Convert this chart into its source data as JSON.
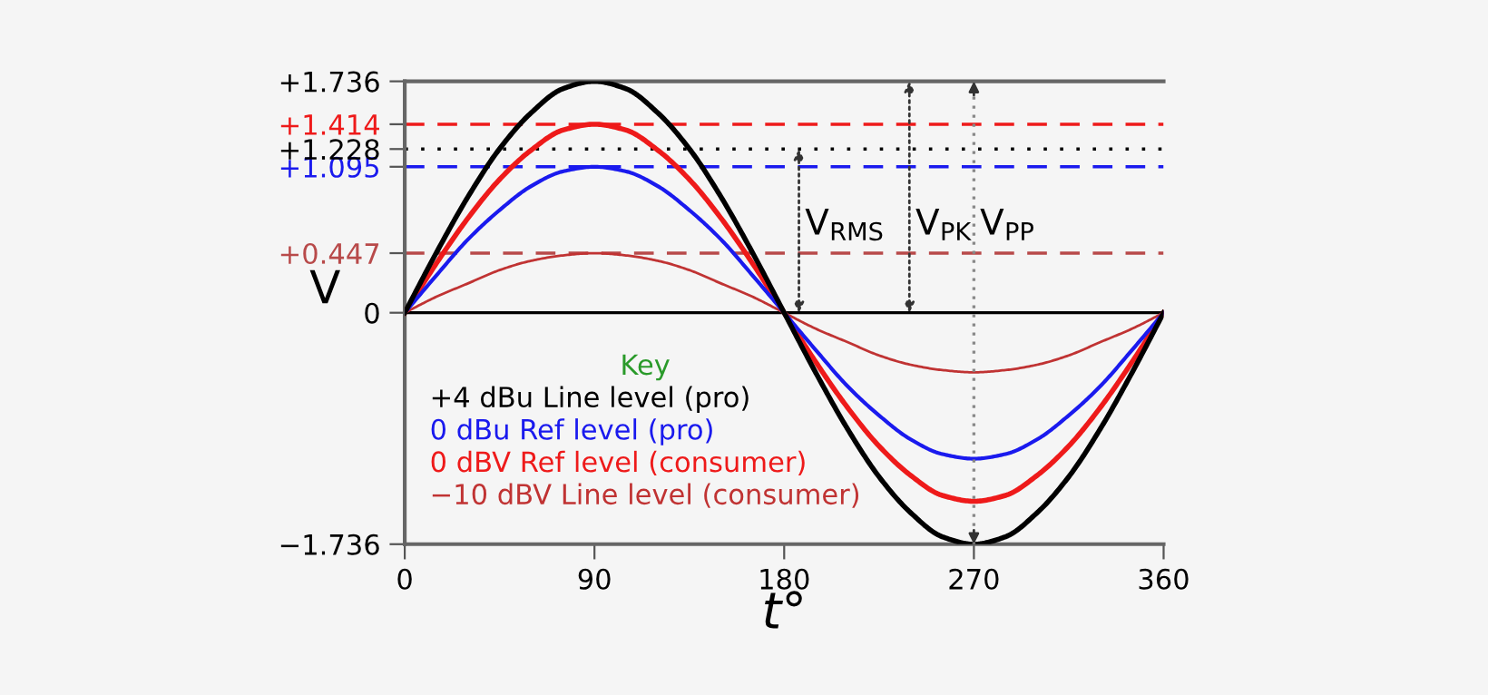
{
  "chart_data": {
    "type": "line",
    "xlabel": "t°",
    "ylabel": "V",
    "legend_title": "Key",
    "x": [
      0,
      15,
      30,
      45,
      60,
      75,
      90,
      105,
      120,
      135,
      150,
      165,
      180,
      195,
      210,
      225,
      240,
      255,
      270,
      285,
      300,
      315,
      330,
      345,
      360
    ],
    "series": [
      {
        "name": "+4 dBu Line level (pro)",
        "color": "#000000",
        "values": [
          0,
          0.45,
          0.87,
          1.23,
          1.5,
          1.68,
          1.736,
          1.68,
          1.5,
          1.23,
          0.87,
          0.45,
          0,
          -0.45,
          -0.87,
          -1.23,
          -1.5,
          -1.68,
          -1.736,
          -1.68,
          -1.5,
          -1.23,
          -0.87,
          -0.45,
          0
        ]
      },
      {
        "name": "0 dBu Ref level (pro)",
        "color": "#1a1aee",
        "values": [
          0,
          0.28,
          0.55,
          0.77,
          0.95,
          1.06,
          1.095,
          1.06,
          0.95,
          0.77,
          0.55,
          0.28,
          0,
          -0.28,
          -0.55,
          -0.77,
          -0.95,
          -1.06,
          -1.095,
          -1.06,
          -0.95,
          -0.77,
          -0.55,
          -0.28,
          0
        ]
      },
      {
        "name": "0 dBV Ref level (consumer)",
        "color": "#ee1a1a",
        "values": [
          0,
          0.37,
          0.71,
          1.0,
          1.22,
          1.37,
          1.414,
          1.37,
          1.22,
          1.0,
          0.71,
          0.37,
          0,
          -0.37,
          -0.71,
          -1.0,
          -1.22,
          -1.37,
          -1.414,
          -1.37,
          -1.22,
          -1.0,
          -0.71,
          -0.37,
          0
        ]
      },
      {
        "name": "−10 dBV Line level (consumer)",
        "color": "#c03333",
        "values": [
          0,
          0.12,
          0.22,
          0.32,
          0.39,
          0.43,
          0.447,
          0.43,
          0.39,
          0.32,
          0.22,
          0.12,
          0,
          -0.12,
          -0.22,
          -0.32,
          -0.39,
          -0.43,
          -0.447,
          -0.43,
          -0.39,
          -0.32,
          -0.22,
          -0.12,
          0
        ]
      }
    ],
    "xlim": [
      0,
      360
    ],
    "xticks": [
      0,
      90,
      180,
      270,
      360
    ],
    "ylim": [
      -1.736,
      1.736
    ],
    "yticks": [
      {
        "value": -1.736,
        "label": "−1.736"
      },
      0,
      {
        "value": 0.447,
        "label": "+0.447"
      },
      {
        "value": 1.095,
        "label": "+1.095"
      },
      {
        "value": 1.228,
        "label": "+1.228"
      },
      {
        "value": 1.414,
        "label": "+1.414"
      },
      {
        "value": 1.736,
        "label": "+1.736"
      }
    ],
    "ref_lines": [
      {
        "axis": "y",
        "value": 0,
        "color": "#000000",
        "line_style": "solid"
      },
      {
        "axis": "y",
        "value": 0.447,
        "color": "#b84a4a",
        "line_style": "dashed"
      },
      {
        "axis": "y",
        "value": 1.095,
        "color": "#1a1aee",
        "line_style": "dashed"
      },
      {
        "axis": "y",
        "value": 1.228,
        "color": "#000000",
        "line_style": "dotted"
      },
      {
        "axis": "y",
        "value": 1.414,
        "color": "#ee1a1a",
        "line_style": "dashed"
      },
      {
        "axis": "x",
        "value": 270,
        "color": "#888888",
        "line_style": "dotted"
      }
    ],
    "annotations": [
      {
        "text": "V$_{RMS}$",
        "x": 187,
        "y": 1.228
      },
      "V$_{PK}$",
      "V$_{PP}$"
    ],
    "legend": "bottom left",
    "grid": false,
    "marker": "none",
    "line_style": "solid"
  }
}
